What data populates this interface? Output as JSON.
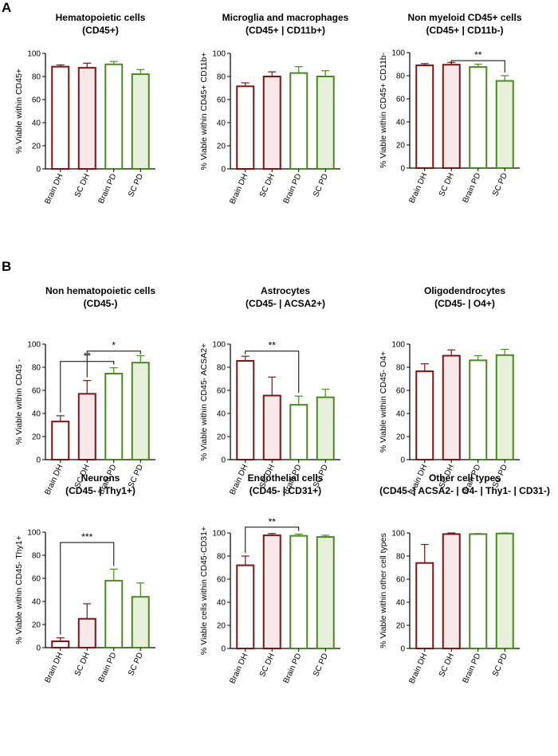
{
  "panels": [
    {
      "id": "A",
      "label": "A"
    },
    {
      "id": "B",
      "label": "B"
    }
  ],
  "colors": {
    "dh_edge": "#7f1414",
    "dh_fill_white": "#ffffff",
    "dh_fill_pink": "#f8e8ea",
    "pd_edge": "#4b8a1e",
    "pd_fill_white": "#ffffff",
    "pd_fill_green": "#e6efd9",
    "axis": "#000000"
  },
  "chart_data": [
    {
      "type": "bar",
      "panel": "A",
      "title": [
        "Hematopoietic cells",
        "(CD45+)"
      ],
      "ylabel": "% Viable within CD45+",
      "ylim": [
        0,
        100
      ],
      "yticks": [
        0,
        20,
        40,
        60,
        80,
        100
      ],
      "categories": [
        "Brain  DH",
        "SC DH",
        "Brain PD",
        "SC PD"
      ],
      "values": [
        88.5,
        87.5,
        90.5,
        82
      ],
      "errors": [
        1.5,
        4,
        2.5,
        4
      ],
      "significance": []
    },
    {
      "type": "bar",
      "panel": "A",
      "title": [
        "Microglia and macrophages",
        "(CD45+ | CD11b+)"
      ],
      "ylabel": "% Viable within CD45+ CD11b+",
      "ylim": [
        0,
        100
      ],
      "yticks": [
        0,
        20,
        40,
        60,
        80,
        100
      ],
      "categories": [
        "Brain  DH",
        "SC DH",
        "Brain PD",
        "SC PD"
      ],
      "values": [
        71.5,
        80,
        83,
        80
      ],
      "errors": [
        3,
        4,
        5.5,
        5
      ],
      "significance": []
    },
    {
      "type": "bar",
      "panel": "A",
      "title": [
        "Non myeloid CD45+ cells",
        "(CD45+ | CD11b-)"
      ],
      "ylabel": "% Viable within CD45+ CD11b-",
      "ylim": [
        0,
        100
      ],
      "yticks": [
        0,
        20,
        40,
        60,
        80,
        100
      ],
      "categories": [
        "Brain  DH",
        "SC DH",
        "Brain PD",
        "SC PD"
      ],
      "values": [
        89,
        89.5,
        87.5,
        75.5
      ],
      "errors": [
        1.5,
        2,
        2.5,
        4.5
      ],
      "significance": [
        {
          "from": 1,
          "to": 3,
          "label": "**",
          "level": 93
        }
      ]
    },
    {
      "type": "bar",
      "panel": "B",
      "title": [
        "Non hematopoietic cells",
        "(CD45-)"
      ],
      "ylabel": "% Viable within CD45 -",
      "ylim": [
        0,
        100
      ],
      "yticks": [
        0,
        20,
        40,
        60,
        80,
        100
      ],
      "categories": [
        "Brain  DH",
        "SC DH",
        "Brain PD",
        "SC PD"
      ],
      "values": [
        33,
        57,
        74.5,
        84
      ],
      "errors": [
        5,
        11.5,
        5,
        6
      ],
      "significance": [
        {
          "from": 0,
          "to": 2,
          "label": "**",
          "level": 85
        },
        {
          "from": 1,
          "to": 3,
          "label": "*",
          "level": 94
        }
      ]
    },
    {
      "type": "bar",
      "panel": "B",
      "title": [
        "Astrocytes",
        "(CD45- | ACSA2+)"
      ],
      "ylabel": "% Viable within CD45- ACSA2+",
      "ylim": [
        0,
        100
      ],
      "yticks": [
        0,
        20,
        40,
        60,
        80,
        100
      ],
      "categories": [
        "Brain  DH",
        "SC DH",
        "Brain PD",
        "SC PD"
      ],
      "values": [
        85.5,
        55.5,
        47.5,
        54
      ],
      "errors": [
        4,
        16,
        7.5,
        7
      ],
      "significance": [
        {
          "from": 0,
          "to": 2,
          "label": "**",
          "level": 94
        }
      ]
    },
    {
      "type": "bar",
      "panel": "B",
      "title": [
        "Oligodendrocytes",
        "(CD45- | O4+)"
      ],
      "ylabel": "% Viable within CD45- O4+",
      "ylim": [
        0,
        100
      ],
      "yticks": [
        0,
        20,
        40,
        60,
        80,
        100
      ],
      "categories": [
        "Brain  DH",
        "SC DH",
        "Brain PD",
        "SC PD"
      ],
      "values": [
        76.5,
        90,
        86,
        90.5
      ],
      "errors": [
        6.5,
        5,
        4,
        5
      ],
      "significance": []
    },
    {
      "type": "bar",
      "panel": "B",
      "title": [
        "Neurons",
        "(CD45- | Thy1+)"
      ],
      "ylabel": "% Viable within CD45- Thy1+",
      "ylim": [
        0,
        100
      ],
      "yticks": [
        0,
        20,
        40,
        60,
        80,
        100
      ],
      "categories": [
        "Brain  DH",
        "SC DH",
        "Brain PD",
        "SC PD"
      ],
      "values": [
        5.5,
        25,
        58,
        44
      ],
      "errors": [
        3,
        13,
        10,
        12
      ],
      "significance": [
        {
          "from": 0,
          "to": 2,
          "label": "***",
          "level": 91
        }
      ]
    },
    {
      "type": "bar",
      "panel": "B",
      "title": [
        "Endothelial cells",
        "(CD45- | CD31+)"
      ],
      "ylabel": "% Viable cells within CD45-CD31+",
      "ylim": [
        0,
        100
      ],
      "yticks": [
        0,
        20,
        40,
        60,
        80,
        100
      ],
      "categories": [
        "Brain  DH",
        "SC DH",
        "Brain PD",
        "SC PD"
      ],
      "values": [
        72,
        98,
        97.5,
        96.5
      ],
      "errors": [
        8,
        1.5,
        1.5,
        1.5
      ],
      "significance": [
        {
          "from": 0,
          "to": 2,
          "label": "**",
          "level": 105
        }
      ]
    },
    {
      "type": "bar",
      "panel": "B",
      "title": [
        "Other cell types",
        "(CD45- | ACSA2- | O4- | Thy1- | CD31-)"
      ],
      "ylabel": "% Viable within other cell types",
      "ylim": [
        0,
        100
      ],
      "yticks": [
        0,
        20,
        40,
        60,
        80,
        100
      ],
      "categories": [
        "Brain  DH",
        "SC DH",
        "Brain PD",
        "SC PD"
      ],
      "values": [
        74,
        99,
        99,
        99.5
      ],
      "errors": [
        16,
        1,
        0.5,
        0.5
      ],
      "significance": []
    }
  ]
}
